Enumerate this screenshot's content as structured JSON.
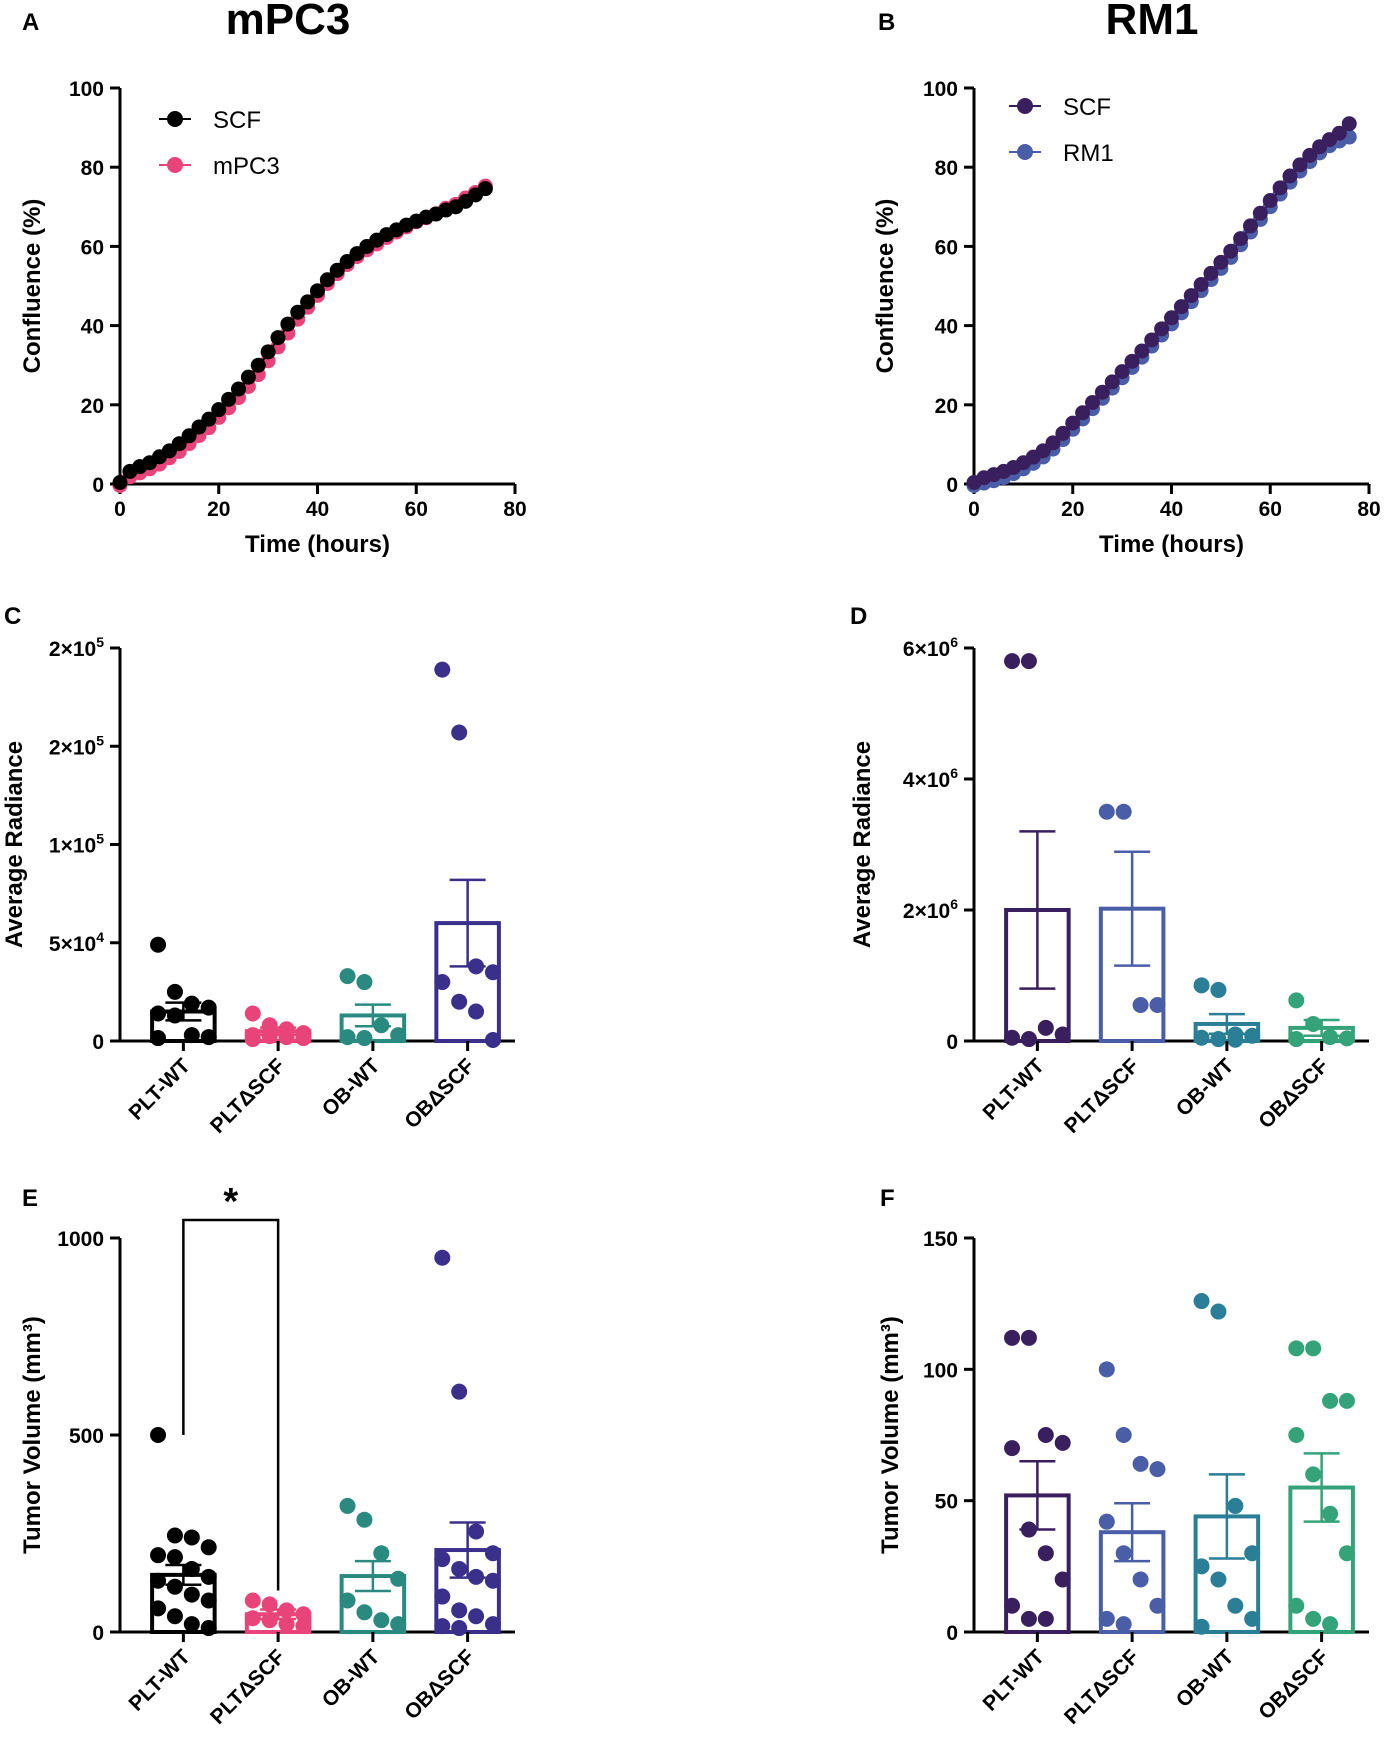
{
  "figure": {
    "panels": [
      {
        "id": "A",
        "label": "A",
        "title": "mPC3"
      },
      {
        "id": "B",
        "label": "B",
        "title": "RM1"
      },
      {
        "id": "C",
        "label": "C"
      },
      {
        "id": "D",
        "label": "D"
      },
      {
        "id": "E",
        "label": "E"
      },
      {
        "id": "F",
        "label": "F"
      }
    ]
  },
  "chart_data": [
    {
      "panel": "A",
      "type": "line",
      "title": "mPC3",
      "xlabel": "Time (hours)",
      "ylabel": "Confluence (%)",
      "xlim": [
        0,
        80
      ],
      "ylim": [
        0,
        100
      ],
      "xticks": [
        0,
        20,
        40,
        60,
        80
      ],
      "yticks": [
        0,
        20,
        40,
        60,
        80,
        100
      ],
      "tick_labels_x": [
        "0",
        "20",
        "40",
        "60",
        "80"
      ],
      "tick_labels_y": [
        "0",
        "20",
        "40",
        "60",
        "80",
        "100"
      ],
      "legend_position": "top-left",
      "series": [
        {
          "name": "mPC3",
          "color": "#e8447a",
          "x": [
            0,
            2,
            4,
            6,
            8,
            10,
            12,
            14,
            16,
            18,
            20,
            22,
            24,
            26,
            28,
            30,
            32,
            34,
            36,
            38,
            40,
            42,
            44,
            46,
            48,
            50,
            52,
            54,
            56,
            58,
            60,
            62,
            64,
            66,
            68,
            70,
            72,
            74
          ],
          "y": [
            0,
            2.2,
            3.2,
            4.2,
            5.4,
            7,
            8.6,
            10.6,
            12.6,
            14.6,
            17.2,
            19.6,
            22.2,
            25,
            28,
            31.5,
            35,
            38.5,
            42,
            45,
            48,
            51,
            53.5,
            55.8,
            57.8,
            59.5,
            61,
            62.6,
            64,
            65.3,
            66.6,
            67.6,
            68.6,
            70,
            71,
            72.6,
            74,
            75.6
          ]
        },
        {
          "name": "SCF",
          "color": "#000000",
          "x": [
            0,
            2,
            4,
            6,
            8,
            10,
            12,
            14,
            16,
            18,
            20,
            22,
            24,
            26,
            28,
            30,
            32,
            34,
            36,
            38,
            40,
            42,
            44,
            46,
            48,
            50,
            52,
            54,
            56,
            58,
            60,
            62,
            64,
            66,
            68,
            70,
            72,
            74
          ],
          "y": [
            0,
            2.8,
            4,
            5,
            6.5,
            8,
            9.8,
            11.8,
            14,
            16,
            18.4,
            21,
            23.6,
            26.6,
            29.6,
            33,
            36.6,
            40,
            43,
            45.6,
            48.4,
            51.2,
            53.6,
            55.8,
            57.8,
            59.6,
            61.2,
            62.6,
            63.8,
            65,
            66,
            67,
            67.8,
            68.8,
            69.6,
            71,
            72.6,
            74.2
          ]
        }
      ]
    },
    {
      "panel": "B",
      "type": "line",
      "title": "RM1",
      "xlabel": "Time (hours)",
      "ylabel": "Confluence (%)",
      "xlim": [
        0,
        80
      ],
      "ylim": [
        0,
        100
      ],
      "xticks": [
        0,
        20,
        40,
        60,
        80
      ],
      "yticks": [
        0,
        20,
        40,
        60,
        80,
        100
      ],
      "tick_labels_x": [
        "0",
        "20",
        "40",
        "60",
        "80"
      ],
      "tick_labels_y": [
        "0",
        "20",
        "40",
        "60",
        "80",
        "100"
      ],
      "legend_position": "top-left",
      "series": [
        {
          "name": "RM1",
          "color": "#4a5ea8",
          "x": [
            0,
            2,
            4,
            6,
            8,
            10,
            12,
            14,
            16,
            18,
            20,
            22,
            24,
            26,
            28,
            30,
            32,
            34,
            36,
            38,
            40,
            42,
            44,
            46,
            48,
            50,
            52,
            54,
            56,
            58,
            60,
            62,
            64,
            66,
            68,
            70,
            72,
            74,
            76
          ],
          "y": [
            0,
            0.6,
            1.2,
            2,
            3,
            4.2,
            5.6,
            7.2,
            9.2,
            11.6,
            14.2,
            16.8,
            19.4,
            22,
            24.6,
            27.2,
            29.8,
            32.4,
            35.2,
            38,
            40.8,
            43.6,
            46.4,
            49.2,
            52,
            54.8,
            57.6,
            60.8,
            64,
            67.2,
            70.4,
            73.6,
            76.6,
            79.4,
            81.8,
            84,
            85.8,
            87,
            88
          ]
        },
        {
          "name": "SCF",
          "color": "#3a1f5e",
          "x": [
            0,
            2,
            4,
            6,
            8,
            10,
            12,
            14,
            16,
            18,
            20,
            22,
            24,
            26,
            28,
            30,
            32,
            34,
            36,
            38,
            40,
            42,
            44,
            46,
            48,
            50,
            52,
            54,
            56,
            58,
            60,
            62,
            64,
            66,
            68,
            70,
            72,
            74,
            76
          ],
          "y": [
            0,
            1.2,
            2,
            2.8,
            3.8,
            5,
            6.4,
            8,
            10,
            12.4,
            15,
            17.6,
            20.2,
            22.8,
            25.4,
            28,
            30.6,
            33.2,
            36,
            38.8,
            41.6,
            44.4,
            47.2,
            50,
            52.8,
            55.6,
            58.4,
            61.6,
            64.8,
            68,
            71.2,
            74.4,
            77.4,
            80.2,
            82.6,
            84.8,
            86.6,
            88.2,
            90.6
          ]
        }
      ]
    },
    {
      "panel": "C",
      "type": "bar",
      "ylabel": "Average Radiance",
      "ylim": [
        0,
        200000
      ],
      "yticks": [
        0,
        50000,
        100000,
        150000,
        200000
      ],
      "tick_labels_y": [
        "0",
        "5×10^4",
        "1×10^5",
        "2×10^5",
        "2×10^5"
      ],
      "categories": [
        "PLT-WT",
        "PLTΔSCF",
        "OB-WT",
        "OBΔSCF"
      ],
      "colors": [
        "#000000",
        "#e8447a",
        "#2a8a80",
        "#3b2f8c"
      ],
      "means": [
        15000,
        5000,
        13000,
        60000
      ],
      "sem": [
        4500,
        1800,
        5500,
        22000
      ],
      "points": [
        [
          49000,
          25000,
          19000,
          17000,
          14000,
          13000,
          3000,
          2000,
          1500
        ],
        [
          14000,
          8000,
          6000,
          4000,
          3000,
          2500,
          2000,
          1500,
          1000
        ],
        [
          33000,
          30000,
          8000,
          3000,
          2000,
          1500
        ],
        [
          189000,
          157000,
          38000,
          35000,
          30000,
          20000,
          15000,
          500
        ]
      ]
    },
    {
      "panel": "D",
      "type": "bar",
      "ylabel": "Average Radiance",
      "ylim": [
        0,
        6000000
      ],
      "yticks": [
        0,
        2000000,
        4000000,
        6000000
      ],
      "tick_labels_y": [
        "0",
        "2×10^6",
        "4×10^6",
        "6×10^6"
      ],
      "categories": [
        "PLT-WT",
        "PLTΔSCF",
        "OB-WT",
        "OBΔSCF"
      ],
      "colors": [
        "#3a1f5e",
        "#4a5ea8",
        "#2a7e95",
        "#35a37a"
      ],
      "means": [
        2000000,
        2020000,
        260000,
        200000
      ],
      "sem": [
        1200000,
        870000,
        150000,
        120000
      ],
      "points": [
        [
          5800000,
          5800000,
          200000,
          100000,
          50000,
          30000
        ],
        [
          3500000,
          3500000,
          550000,
          550000
        ],
        [
          850000,
          780000,
          100000,
          80000,
          50000,
          30000,
          20000
        ],
        [
          620000,
          260000,
          60000,
          40000,
          30000
        ]
      ]
    },
    {
      "panel": "E",
      "type": "bar",
      "ylabel": "Tumor Volume (mm³)",
      "ylim": [
        0,
        1000
      ],
      "yticks": [
        0,
        500,
        1000
      ],
      "tick_labels_y": [
        "0",
        "500",
        "1000"
      ],
      "categories": [
        "PLT-WT",
        "PLTΔSCF",
        "OB-WT",
        "OBΔSCF"
      ],
      "colors": [
        "#000000",
        "#e8447a",
        "#2a8a80",
        "#3b2f8c"
      ],
      "means": [
        145,
        45,
        142,
        208
      ],
      "sem": [
        25,
        12,
        38,
        70
      ],
      "points": [
        [
          500,
          245,
          240,
          215,
          195,
          190,
          160,
          140,
          130,
          115,
          95,
          80,
          60,
          40,
          20,
          10
        ],
        [
          80,
          70,
          55,
          45,
          35,
          30,
          20,
          15
        ],
        [
          320,
          285,
          200,
          135,
          80,
          50,
          30,
          20
        ],
        [
          950,
          610,
          255,
          200,
          185,
          160,
          140,
          130,
          90,
          55,
          40,
          20,
          15,
          10
        ]
      ],
      "significance": {
        "groups": [
          0,
          1
        ],
        "label": "*"
      }
    },
    {
      "panel": "F",
      "type": "bar",
      "ylabel": "Tumor Volume (mm³)",
      "ylim": [
        0,
        150
      ],
      "yticks": [
        0,
        50,
        100,
        150
      ],
      "tick_labels_y": [
        "0",
        "50",
        "100",
        "150"
      ],
      "categories": [
        "PLT-WT",
        "PLTΔSCF",
        "OB-WT",
        "OBΔSCF"
      ],
      "colors": [
        "#3a1f5e",
        "#4a5ea8",
        "#2a7e95",
        "#35a37a"
      ],
      "means": [
        52,
        38,
        44,
        55
      ],
      "sem": [
        13,
        11,
        16,
        13
      ],
      "points": [
        [
          112,
          112,
          75,
          72,
          70,
          39,
          30,
          20,
          10,
          5,
          5
        ],
        [
          100,
          75,
          64,
          62,
          42,
          30,
          20,
          10,
          5,
          3
        ],
        [
          126,
          122,
          48,
          30,
          25,
          20,
          10,
          5,
          2
        ],
        [
          108,
          108,
          88,
          88,
          75,
          60,
          45,
          30,
          10,
          5,
          3
        ]
      ]
    }
  ]
}
